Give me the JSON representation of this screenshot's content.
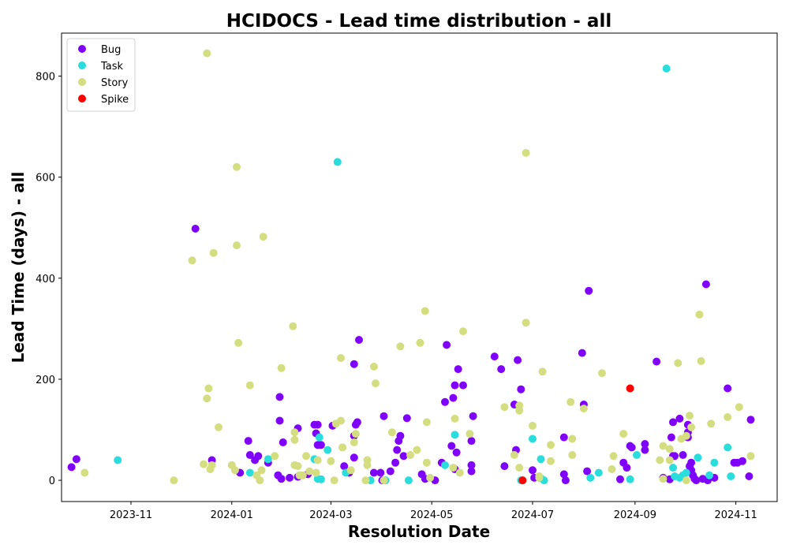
{
  "chart_data": {
    "type": "scatter",
    "title": "HCIDOCS - Lead time distribution - all",
    "xlabel": "Resolution Date",
    "ylabel": "Lead Time (days) - all",
    "x_ticks": [
      "2023-11",
      "2024-01",
      "2024-03",
      "2024-05",
      "2024-07",
      "2024-09",
      "2024-11"
    ],
    "y_ticks": [
      0,
      200,
      400,
      600,
      800
    ],
    "xlim": [
      "2023-09-20",
      "2024-11-26"
    ],
    "ylim": [
      -42,
      885
    ],
    "legend_position": "upper-left",
    "series": [
      {
        "name": "Bug",
        "color": "#8000ff",
        "points": [
          [
            "2023-09-26",
            26
          ],
          [
            "2023-09-29",
            42
          ],
          [
            "2023-12-10",
            498
          ],
          [
            "2023-12-20",
            40
          ],
          [
            "2024-01-06",
            15
          ],
          [
            "2024-01-11",
            78
          ],
          [
            "2024-01-12",
            50
          ],
          [
            "2024-01-15",
            40
          ],
          [
            "2024-01-17",
            48
          ],
          [
            "2024-01-23",
            35
          ],
          [
            "2024-01-29",
            10
          ],
          [
            "2024-01-30",
            165
          ],
          [
            "2024-01-30",
            118
          ],
          [
            "2024-01-31",
            3
          ],
          [
            "2024-02-01",
            75
          ],
          [
            "2024-02-05",
            5
          ],
          [
            "2024-02-10",
            7
          ],
          [
            "2024-02-10",
            103
          ],
          [
            "2024-02-16",
            12
          ],
          [
            "2024-02-20",
            110
          ],
          [
            "2024-02-21",
            93
          ],
          [
            "2024-02-22",
            110
          ],
          [
            "2024-02-22",
            70
          ],
          [
            "2024-02-24",
            70
          ],
          [
            "2024-03-02",
            108
          ],
          [
            "2024-03-09",
            28
          ],
          [
            "2024-03-12",
            15
          ],
          [
            "2024-03-15",
            230
          ],
          [
            "2024-03-15",
            45
          ],
          [
            "2024-03-15",
            88
          ],
          [
            "2024-03-16",
            110
          ],
          [
            "2024-03-17",
            115
          ],
          [
            "2024-03-18",
            278
          ],
          [
            "2024-03-27",
            15
          ],
          [
            "2024-03-31",
            15
          ],
          [
            "2024-04-01",
            0
          ],
          [
            "2024-04-02",
            127
          ],
          [
            "2024-04-06",
            18
          ],
          [
            "2024-04-09",
            35
          ],
          [
            "2024-04-10",
            60
          ],
          [
            "2024-04-11",
            78
          ],
          [
            "2024-04-12",
            88
          ],
          [
            "2024-04-14",
            48
          ],
          [
            "2024-04-16",
            123
          ],
          [
            "2024-04-25",
            12
          ],
          [
            "2024-04-27",
            3
          ],
          [
            "2024-05-03",
            0
          ],
          [
            "2024-05-07",
            35
          ],
          [
            "2024-05-09",
            155
          ],
          [
            "2024-05-10",
            268
          ],
          [
            "2024-05-13",
            68
          ],
          [
            "2024-05-14",
            163
          ],
          [
            "2024-05-15",
            22
          ],
          [
            "2024-05-15",
            188
          ],
          [
            "2024-05-16",
            55
          ],
          [
            "2024-05-17",
            220
          ],
          [
            "2024-05-20",
            188
          ],
          [
            "2024-05-25",
            30
          ],
          [
            "2024-05-25",
            18
          ],
          [
            "2024-05-25",
            78
          ],
          [
            "2024-05-26",
            127
          ],
          [
            "2024-06-08",
            245
          ],
          [
            "2024-06-12",
            220
          ],
          [
            "2024-06-14",
            28
          ],
          [
            "2024-06-20",
            150
          ],
          [
            "2024-06-21",
            60
          ],
          [
            "2024-06-22",
            238
          ],
          [
            "2024-06-24",
            180
          ],
          [
            "2024-07-01",
            20
          ],
          [
            "2024-07-02",
            5
          ],
          [
            "2024-07-20",
            85
          ],
          [
            "2024-07-20",
            12
          ],
          [
            "2024-07-21",
            0
          ],
          [
            "2024-07-31",
            252
          ],
          [
            "2024-08-01",
            150
          ],
          [
            "2024-08-03",
            18
          ],
          [
            "2024-08-04",
            375
          ],
          [
            "2024-08-23",
            2
          ],
          [
            "2024-08-25",
            35
          ],
          [
            "2024-08-27",
            25
          ],
          [
            "2024-08-29",
            68
          ],
          [
            "2024-08-30",
            65
          ],
          [
            "2024-09-07",
            72
          ],
          [
            "2024-09-07",
            60
          ],
          [
            "2024-09-14",
            235
          ],
          [
            "2024-09-18",
            5
          ],
          [
            "2024-09-22",
            2
          ],
          [
            "2024-09-23",
            85
          ],
          [
            "2024-09-24",
            48
          ],
          [
            "2024-09-24",
            115
          ],
          [
            "2024-09-25",
            48
          ],
          [
            "2024-09-28",
            122
          ],
          [
            "2024-09-30",
            50
          ],
          [
            "2024-10-03",
            85
          ],
          [
            "2024-10-03",
            95
          ],
          [
            "2024-10-03",
            110
          ],
          [
            "2024-10-04",
            28
          ],
          [
            "2024-10-05",
            20
          ],
          [
            "2024-10-05",
            35
          ],
          [
            "2024-10-06",
            10
          ],
          [
            "2024-10-07",
            3
          ],
          [
            "2024-10-08",
            0
          ],
          [
            "2024-10-12",
            3
          ],
          [
            "2024-10-14",
            388
          ],
          [
            "2024-10-15",
            0
          ],
          [
            "2024-10-19",
            5
          ],
          [
            "2024-10-27",
            182
          ],
          [
            "2024-10-31",
            35
          ],
          [
            "2024-11-02",
            35
          ],
          [
            "2024-11-05",
            38
          ],
          [
            "2024-11-09",
            8
          ],
          [
            "2024-11-10",
            120
          ]
        ]
      },
      {
        "name": "Task",
        "color": "#2adddd",
        "points": [
          [
            "2023-10-24",
            40
          ],
          [
            "2024-01-12",
            15
          ],
          [
            "2024-01-23",
            42
          ],
          [
            "2024-02-20",
            42
          ],
          [
            "2024-02-22",
            3
          ],
          [
            "2024-02-23",
            85
          ],
          [
            "2024-02-24",
            2
          ],
          [
            "2024-02-28",
            60
          ],
          [
            "2024-03-05",
            630
          ],
          [
            "2024-03-10",
            15
          ],
          [
            "2024-03-25",
            0
          ],
          [
            "2024-04-03",
            0
          ],
          [
            "2024-04-17",
            0
          ],
          [
            "2024-05-09",
            30
          ],
          [
            "2024-05-15",
            90
          ],
          [
            "2024-06-24",
            0
          ],
          [
            "2024-07-01",
            82
          ],
          [
            "2024-07-05",
            5
          ],
          [
            "2024-07-06",
            4
          ],
          [
            "2024-07-06",
            42
          ],
          [
            "2024-07-08",
            0
          ],
          [
            "2024-08-05",
            5
          ],
          [
            "2024-08-10",
            15
          ],
          [
            "2024-08-29",
            2
          ],
          [
            "2024-09-02",
            50
          ],
          [
            "2024-09-20",
            815
          ],
          [
            "2024-09-24",
            25
          ],
          [
            "2024-09-25",
            8
          ],
          [
            "2024-09-28",
            5
          ],
          [
            "2024-09-30",
            10
          ],
          [
            "2024-10-02",
            15
          ],
          [
            "2024-10-09",
            45
          ],
          [
            "2024-10-16",
            10
          ],
          [
            "2024-10-19",
            35
          ],
          [
            "2024-10-27",
            65
          ],
          [
            "2024-10-29",
            8
          ]
        ]
      },
      {
        "name": "Story",
        "color": "#d4dd80",
        "points": [
          [
            "2023-10-04",
            15
          ],
          [
            "2023-11-27",
            0
          ],
          [
            "2023-12-08",
            435
          ],
          [
            "2023-12-15",
            32
          ],
          [
            "2023-12-17",
            845
          ],
          [
            "2023-12-17",
            162
          ],
          [
            "2023-12-18",
            182
          ],
          [
            "2023-12-19",
            22
          ],
          [
            "2023-12-20",
            30
          ],
          [
            "2023-12-21",
            450
          ],
          [
            "2023-12-24",
            105
          ],
          [
            "2024-01-01",
            30
          ],
          [
            "2024-01-03",
            20
          ],
          [
            "2024-01-04",
            620
          ],
          [
            "2024-01-04",
            465
          ],
          [
            "2024-01-05",
            272
          ],
          [
            "2024-01-12",
            188
          ],
          [
            "2024-01-16",
            10
          ],
          [
            "2024-01-18",
            0
          ],
          [
            "2024-01-19",
            20
          ],
          [
            "2024-01-20",
            482
          ],
          [
            "2024-01-27",
            48
          ],
          [
            "2024-01-31",
            222
          ],
          [
            "2024-02-07",
            305
          ],
          [
            "2024-02-08",
            95
          ],
          [
            "2024-02-08",
            80
          ],
          [
            "2024-02-08",
            30
          ],
          [
            "2024-02-10",
            28
          ],
          [
            "2024-02-11",
            10
          ],
          [
            "2024-02-13",
            10
          ],
          [
            "2024-02-15",
            48
          ],
          [
            "2024-02-17",
            18
          ],
          [
            "2024-02-21",
            15
          ],
          [
            "2024-02-22",
            40
          ],
          [
            "2024-03-01",
            38
          ],
          [
            "2024-03-03",
            0
          ],
          [
            "2024-03-04",
            112
          ],
          [
            "2024-03-07",
            242
          ],
          [
            "2024-03-07",
            118
          ],
          [
            "2024-03-08",
            65
          ],
          [
            "2024-03-08",
            65
          ],
          [
            "2024-03-13",
            20
          ],
          [
            "2024-03-15",
            75
          ],
          [
            "2024-03-16",
            92
          ],
          [
            "2024-03-22",
            0
          ],
          [
            "2024-03-23",
            40
          ],
          [
            "2024-03-23",
            30
          ],
          [
            "2024-03-27",
            225
          ],
          [
            "2024-03-28",
            192
          ],
          [
            "2024-04-02",
            0
          ],
          [
            "2024-04-07",
            95
          ],
          [
            "2024-04-12",
            265
          ],
          [
            "2024-04-18",
            50
          ],
          [
            "2024-04-22",
            60
          ],
          [
            "2024-04-24",
            272
          ],
          [
            "2024-04-27",
            335
          ],
          [
            "2024-04-28",
            35
          ],
          [
            "2024-04-28",
            115
          ],
          [
            "2024-04-30",
            5
          ],
          [
            "2024-05-14",
            25
          ],
          [
            "2024-05-15",
            122
          ],
          [
            "2024-05-18",
            15
          ],
          [
            "2024-05-20",
            295
          ],
          [
            "2024-05-24",
            92
          ],
          [
            "2024-06-14",
            145
          ],
          [
            "2024-06-20",
            50
          ],
          [
            "2024-06-23",
            148
          ],
          [
            "2024-06-23",
            138
          ],
          [
            "2024-06-23",
            25
          ],
          [
            "2024-06-27",
            312
          ],
          [
            "2024-06-27",
            648
          ],
          [
            "2024-07-01",
            108
          ],
          [
            "2024-07-05",
            5
          ],
          [
            "2024-07-05",
            8
          ],
          [
            "2024-07-07",
            215
          ],
          [
            "2024-07-12",
            70
          ],
          [
            "2024-07-12",
            38
          ],
          [
            "2024-07-24",
            155
          ],
          [
            "2024-07-25",
            82
          ],
          [
            "2024-07-25",
            50
          ],
          [
            "2024-08-01",
            142
          ],
          [
            "2024-08-12",
            212
          ],
          [
            "2024-08-18",
            22
          ],
          [
            "2024-08-19",
            48
          ],
          [
            "2024-08-25",
            92
          ],
          [
            "2024-09-16",
            40
          ],
          [
            "2024-09-18",
            3
          ],
          [
            "2024-09-18",
            68
          ],
          [
            "2024-09-22",
            62
          ],
          [
            "2024-09-22",
            40
          ],
          [
            "2024-09-27",
            232
          ],
          [
            "2024-09-29",
            82
          ],
          [
            "2024-10-02",
            88
          ],
          [
            "2024-10-02",
            0
          ],
          [
            "2024-10-04",
            128
          ],
          [
            "2024-10-05",
            105
          ],
          [
            "2024-10-10",
            328
          ],
          [
            "2024-10-11",
            236
          ],
          [
            "2024-10-17",
            112
          ],
          [
            "2024-10-27",
            125
          ],
          [
            "2024-11-03",
            145
          ],
          [
            "2024-11-10",
            48
          ]
        ]
      },
      {
        "name": "Spike",
        "color": "#ff0000",
        "points": [
          [
            "2024-06-25",
            0
          ],
          [
            "2024-08-29",
            182
          ]
        ]
      }
    ]
  }
}
